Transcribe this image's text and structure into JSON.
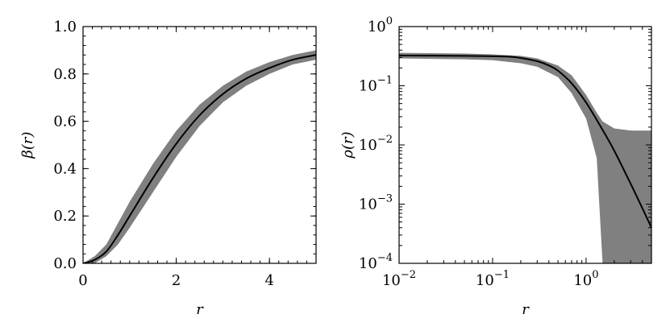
{
  "chart_data": [
    {
      "type": "line",
      "panel": "left",
      "xlabel": "r",
      "ylabel": "β(r)",
      "xlim": [
        0,
        5
      ],
      "ylim": [
        0,
        1
      ],
      "xscale": "linear",
      "yscale": "linear",
      "xticks": [
        0,
        2,
        4
      ],
      "xtick_labels": [
        "0",
        "2",
        "4"
      ],
      "yticks": [
        0.0,
        0.2,
        0.4,
        0.6,
        0.8,
        1.0
      ],
      "ytick_labels": [
        "0.0",
        "0.2",
        "0.4",
        "0.6",
        "0.8",
        "1.0"
      ],
      "grid": false,
      "series": [
        {
          "kind": "band",
          "color": "#808080",
          "x": [
            0,
            0.25,
            0.5,
            0.75,
            1.0,
            1.5,
            2.0,
            2.5,
            3.0,
            3.5,
            4.0,
            4.5,
            5.0
          ],
          "y_lower": [
            0,
            0.0,
            0.03,
            0.08,
            0.15,
            0.3,
            0.45,
            0.58,
            0.68,
            0.75,
            0.8,
            0.84,
            0.86
          ],
          "y_upper": [
            0,
            0.03,
            0.08,
            0.17,
            0.26,
            0.42,
            0.56,
            0.67,
            0.75,
            0.81,
            0.85,
            0.88,
            0.9
          ]
        },
        {
          "kind": "line",
          "color": "#000000",
          "x": [
            0,
            0.25,
            0.5,
            0.75,
            1.0,
            1.5,
            2.0,
            2.5,
            3.0,
            3.5,
            4.0,
            4.5,
            5.0
          ],
          "y": [
            0,
            0.015,
            0.05,
            0.12,
            0.2,
            0.36,
            0.505,
            0.625,
            0.715,
            0.78,
            0.825,
            0.86,
            0.88
          ]
        }
      ]
    },
    {
      "type": "line",
      "panel": "right",
      "xlabel": "r",
      "ylabel": "ρ(r)",
      "xlim": [
        0.01,
        5
      ],
      "ylim": [
        0.0001,
        1
      ],
      "xscale": "log",
      "yscale": "log",
      "xticks": [
        0.01,
        0.1,
        1
      ],
      "xtick_labels": [
        {
          "base": "10",
          "exp": "−2"
        },
        {
          "base": "10",
          "exp": "−1"
        },
        {
          "base": "10",
          "exp": "0"
        }
      ],
      "yticks": [
        0.0001,
        0.001,
        0.01,
        0.1,
        1
      ],
      "ytick_labels": [
        {
          "base": "10",
          "exp": "−4"
        },
        {
          "base": "10",
          "exp": "−3"
        },
        {
          "base": "10",
          "exp": "−2"
        },
        {
          "base": "10",
          "exp": "−1"
        },
        {
          "base": "10",
          "exp": "0"
        }
      ],
      "grid": false,
      "series": [
        {
          "kind": "band",
          "color": "#808080",
          "x": [
            0.01,
            0.05,
            0.1,
            0.2,
            0.3,
            0.5,
            0.7,
            1.0,
            1.3,
            1.5,
            2.0,
            3.0,
            5.0
          ],
          "y_lower": [
            0.29,
            0.28,
            0.27,
            0.24,
            0.21,
            0.14,
            0.075,
            0.028,
            0.006,
            0.0001,
            0.0001,
            0.0001,
            0.0001
          ],
          "y_upper": [
            0.36,
            0.35,
            0.34,
            0.32,
            0.29,
            0.22,
            0.15,
            0.07,
            0.035,
            0.025,
            0.019,
            0.0175,
            0.0175
          ]
        },
        {
          "kind": "line",
          "color": "#000000",
          "x": [
            0.01,
            0.05,
            0.1,
            0.15,
            0.2,
            0.3,
            0.4,
            0.5,
            0.7,
            1.0,
            1.5,
            2.0,
            3.0,
            4.0,
            5.0
          ],
          "y": [
            0.325,
            0.32,
            0.315,
            0.31,
            0.295,
            0.26,
            0.22,
            0.18,
            0.11,
            0.052,
            0.018,
            0.008,
            0.0022,
            0.00085,
            0.0004
          ]
        }
      ]
    }
  ]
}
